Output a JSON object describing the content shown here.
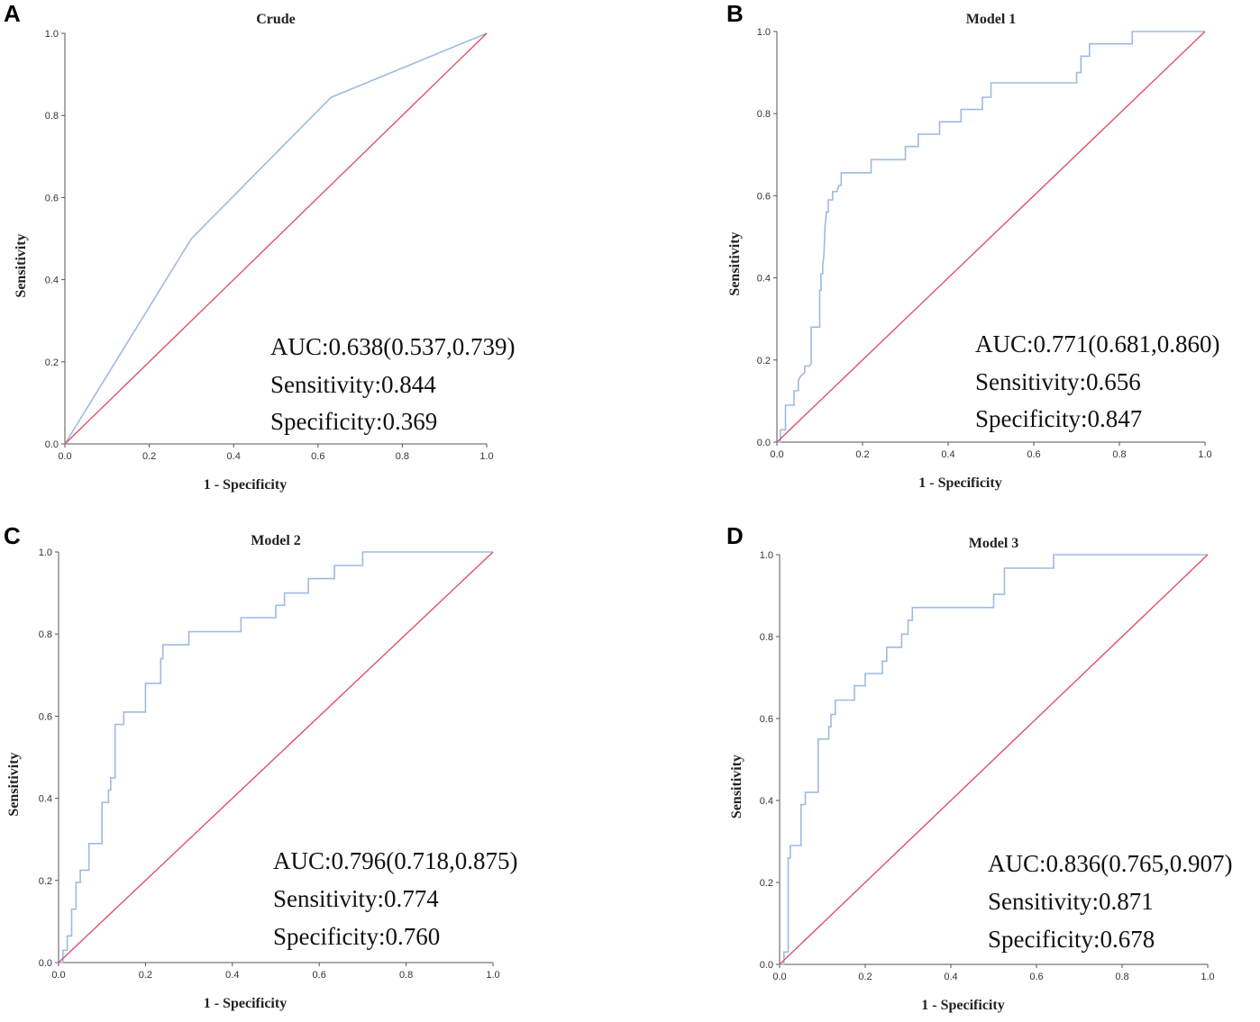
{
  "figure": {
    "description_panels": [
      "A",
      "B",
      "C",
      "D"
    ]
  },
  "colors": {
    "roc_curve": "#9dbbe0",
    "reference_line": "#e0506e",
    "axis": "#555555"
  },
  "chart_data": [
    {
      "type": "line",
      "panel_letter": "A",
      "title": "Crude",
      "xlabel": "1 - Specificity",
      "ylabel": "Sensitivity",
      "xlim": [
        0,
        1
      ],
      "ylim": [
        0,
        1
      ],
      "xticks": [
        "0.0",
        "0.2",
        "0.4",
        "0.6",
        "0.8",
        "1.0"
      ],
      "yticks": [
        "0.0",
        "0.2",
        "0.4",
        "0.6",
        "0.8",
        "1.0"
      ],
      "series": [
        {
          "name": "ROC curve",
          "x": [
            0,
            0.3,
            0.631,
            1.0
          ],
          "y": [
            0,
            0.5,
            0.844,
            1.0
          ]
        },
        {
          "name": "Reference line",
          "x": [
            0,
            1
          ],
          "y": [
            0,
            1
          ]
        }
      ],
      "annotations": [
        "AUC:0.638(0.537,0.739)",
        "Sensitivity:0.844",
        "Specificity:0.369"
      ]
    },
    {
      "type": "line",
      "panel_letter": "B",
      "title": "Model 1",
      "xlabel": "1 - Specificity",
      "ylabel": "Sensitivity",
      "xlim": [
        0,
        1
      ],
      "ylim": [
        0,
        1
      ],
      "xticks": [
        "0.0",
        "0.2",
        "0.4",
        "0.6",
        "0.8",
        "1.0"
      ],
      "yticks": [
        "0.0",
        "0.2",
        "0.4",
        "0.6",
        "0.8",
        "1.0"
      ],
      "series": [
        {
          "name": "ROC curve",
          "x": [
            0,
            0.008,
            0.008,
            0.02,
            0.02,
            0.04,
            0.04,
            0.05,
            0.05,
            0.055,
            0.065,
            0.065,
            0.07,
            0.075,
            0.08,
            0.08,
            0.09,
            0.09,
            0.1,
            0.1,
            0.103,
            0.103,
            0.107,
            0.107,
            0.11,
            0.112,
            0.115,
            0.115,
            0.12,
            0.12,
            0.13,
            0.13,
            0.14,
            0.145,
            0.15,
            0.15,
            0.22,
            0.22,
            0.3,
            0.3,
            0.33,
            0.33,
            0.36,
            0.36,
            0.38,
            0.38,
            0.43,
            0.43,
            0.48,
            0.48,
            0.5,
            0.5,
            0.7,
            0.7,
            0.71,
            0.71,
            0.73,
            0.73,
            0.83,
            0.83,
            1.0
          ],
          "y": [
            0,
            0,
            0.03,
            0.03,
            0.09,
            0.09,
            0.125,
            0.125,
            0.15,
            0.16,
            0.17,
            0.185,
            0.185,
            0.185,
            0.19,
            0.28,
            0.28,
            0.28,
            0.28,
            0.37,
            0.37,
            0.41,
            0.41,
            0.43,
            0.46,
            0.52,
            0.55,
            0.56,
            0.56,
            0.59,
            0.59,
            0.61,
            0.61,
            0.625,
            0.625,
            0.656,
            0.656,
            0.688,
            0.688,
            0.72,
            0.72,
            0.75,
            0.75,
            0.75,
            0.75,
            0.78,
            0.78,
            0.81,
            0.81,
            0.84,
            0.84,
            0.875,
            0.875,
            0.9,
            0.9,
            0.94,
            0.94,
            0.97,
            0.97,
            1.0,
            1.0
          ]
        },
        {
          "name": "Reference line",
          "x": [
            0,
            1
          ],
          "y": [
            0,
            1
          ]
        }
      ],
      "annotations": [
        "AUC:0.771(0.681,0.860)",
        "Sensitivity:0.656",
        "Specificity:0.847"
      ]
    },
    {
      "type": "line",
      "panel_letter": "C",
      "title": "Model 2",
      "xlabel": "1 - Specificity",
      "ylabel": "Sensitivity",
      "xlim": [
        0,
        1
      ],
      "ylim": [
        0,
        1
      ],
      "xticks": [
        "0.0",
        "0.2",
        "0.4",
        "0.6",
        "0.8",
        "1.0"
      ],
      "yticks": [
        "0.0",
        "0.2",
        "0.4",
        "0.6",
        "0.8",
        "1.0"
      ],
      "series": [
        {
          "name": "ROC curve",
          "x": [
            0,
            0.01,
            0.01,
            0.02,
            0.02,
            0.03,
            0.03,
            0.04,
            0.04,
            0.05,
            0.05,
            0.07,
            0.07,
            0.1,
            0.1,
            0.115,
            0.115,
            0.12,
            0.12,
            0.13,
            0.13,
            0.15,
            0.15,
            0.2,
            0.2,
            0.235,
            0.235,
            0.24,
            0.24,
            0.3,
            0.3,
            0.42,
            0.42,
            0.5,
            0.5,
            0.52,
            0.52,
            0.575,
            0.575,
            0.635,
            0.635,
            0.7,
            0.7,
            1.0
          ],
          "y": [
            0,
            0,
            0.03,
            0.03,
            0.065,
            0.065,
            0.13,
            0.13,
            0.195,
            0.195,
            0.225,
            0.225,
            0.29,
            0.29,
            0.39,
            0.39,
            0.42,
            0.42,
            0.45,
            0.45,
            0.58,
            0.58,
            0.61,
            0.61,
            0.68,
            0.68,
            0.74,
            0.74,
            0.774,
            0.774,
            0.806,
            0.806,
            0.84,
            0.84,
            0.87,
            0.87,
            0.9,
            0.9,
            0.935,
            0.935,
            0.967,
            0.967,
            1.0,
            1.0
          ]
        },
        {
          "name": "Reference line",
          "x": [
            0,
            1
          ],
          "y": [
            0,
            1
          ]
        }
      ],
      "annotations": [
        "AUC:0.796(0.718,0.875)",
        "Sensitivity:0.774",
        "Specificity:0.760"
      ]
    },
    {
      "type": "line",
      "panel_letter": "D",
      "title": "Model 3",
      "xlabel": "1 - Specificity",
      "ylabel": "Sensitivity",
      "xlim": [
        0,
        1
      ],
      "ylim": [
        0,
        1
      ],
      "xticks": [
        "0.0",
        "0.2",
        "0.4",
        "0.6",
        "0.8",
        "1.0"
      ],
      "yticks": [
        "0.0",
        "0.2",
        "0.4",
        "0.6",
        "0.8",
        "1.0"
      ],
      "series": [
        {
          "name": "ROC curve",
          "x": [
            0,
            0.01,
            0.01,
            0.02,
            0.02,
            0.025,
            0.025,
            0.05,
            0.05,
            0.06,
            0.06,
            0.07,
            0.07,
            0.09,
            0.09,
            0.115,
            0.115,
            0.12,
            0.12,
            0.13,
            0.13,
            0.145,
            0.145,
            0.175,
            0.175,
            0.2,
            0.2,
            0.24,
            0.24,
            0.25,
            0.25,
            0.285,
            0.285,
            0.3,
            0.3,
            0.31,
            0.31,
            0.322,
            0.322,
            0.5,
            0.5,
            0.525,
            0.525,
            0.64,
            0.64,
            1.0
          ],
          "y": [
            0,
            0,
            0.03,
            0.03,
            0.26,
            0.26,
            0.29,
            0.29,
            0.39,
            0.39,
            0.42,
            0.42,
            0.42,
            0.42,
            0.55,
            0.55,
            0.58,
            0.58,
            0.61,
            0.61,
            0.645,
            0.645,
            0.645,
            0.645,
            0.68,
            0.68,
            0.71,
            0.71,
            0.74,
            0.74,
            0.774,
            0.774,
            0.806,
            0.806,
            0.84,
            0.84,
            0.871,
            0.871,
            0.871,
            0.871,
            0.903,
            0.903,
            0.967,
            0.967,
            1.0,
            1.0
          ]
        },
        {
          "name": "Reference line",
          "x": [
            0,
            1
          ],
          "y": [
            0,
            1
          ]
        }
      ],
      "annotations": [
        "AUC:0.836(0.765,0.907)",
        "Sensitivity:0.871",
        "Specificity:0.678"
      ]
    }
  ]
}
